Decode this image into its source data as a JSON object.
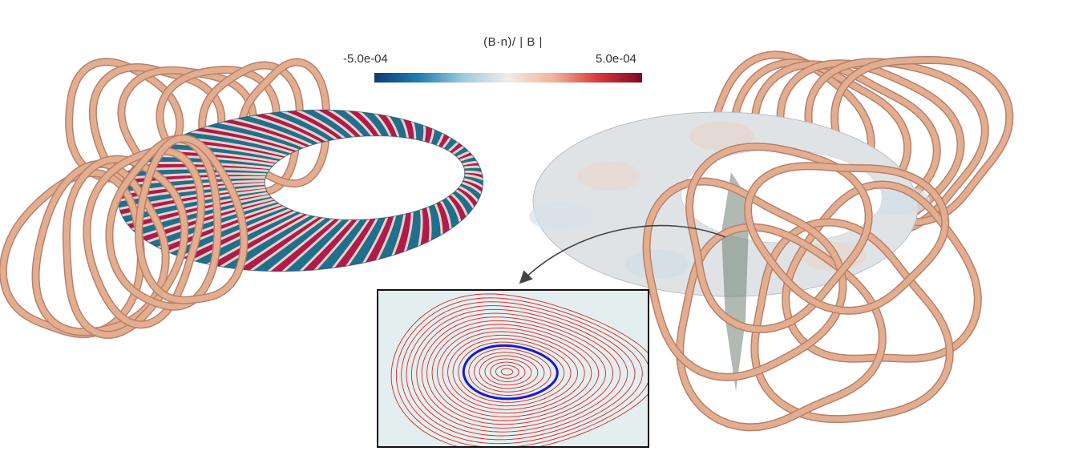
{
  "colorbar": {
    "title": "(B·n)/ | B |",
    "min_label": "-5.0e-04",
    "max_label": "5.0e-04",
    "colors": [
      "#0b3d78",
      "#1f7fb0",
      "#9fcbe0",
      "#f2ecea",
      "#f3b39a",
      "#d83a3a",
      "#7a0b22"
    ]
  },
  "colors": {
    "coil": "#e3ae90",
    "coil_edge": "#b8806a",
    "plasma_blue": "#1f6f8e",
    "plasma_red": "#b01a4c",
    "plasma_band": "#e8d3c4",
    "surface_gray": "#dfe3e6",
    "plane": "#6f7f72",
    "inset_bg": "#e3efef",
    "contour_red": "#e02020",
    "contour_blue": "#1818d8",
    "arrow": "#444444"
  },
  "left_panel": {
    "coil_count": 12,
    "plasma_band_count": 36
  },
  "right_panel": {
    "coil_count": 12
  },
  "inset": {
    "contour_count": 22,
    "highlight_surface": 8
  }
}
